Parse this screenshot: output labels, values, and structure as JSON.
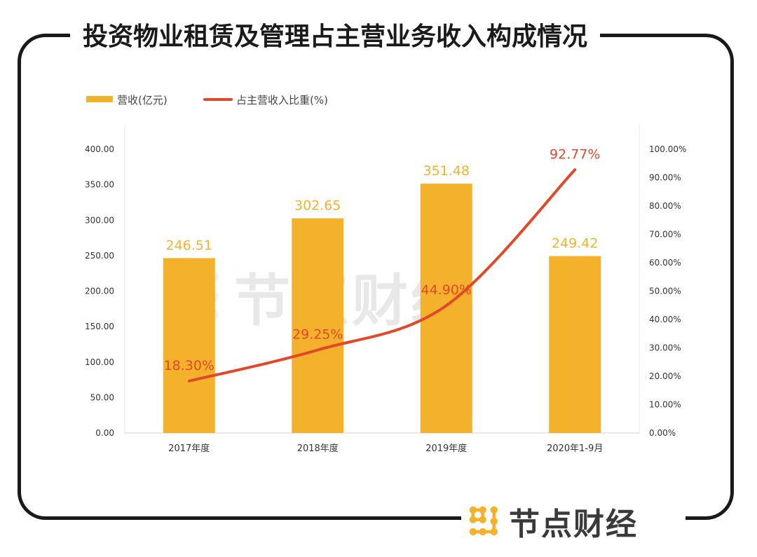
{
  "title": "投资物业租赁及管理占主营业务收入构成情况",
  "logo_text": "节点财经",
  "watermark_text": "节点财经",
  "chart_data": {
    "type": "bar+line",
    "categories": [
      "2017年度",
      "2018年度",
      "2019年度",
      "2020年1-9月"
    ],
    "series": [
      {
        "name": "营收(亿元)",
        "type": "bar",
        "axis": "left",
        "color": "#F4B12B",
        "values": [
          246.51,
          302.65,
          351.48,
          249.42
        ],
        "labels": [
          "246.51",
          "302.65",
          "351.48",
          "249.42"
        ]
      },
      {
        "name": "占主营收入比重(%)",
        "type": "line",
        "axis": "right",
        "color": "#E2492B",
        "values": [
          18.3,
          29.25,
          44.9,
          92.77
        ],
        "labels": [
          "18.30%",
          "29.25%",
          "44.90%",
          "92.77%"
        ]
      }
    ],
    "yleft": {
      "lim": [
        0,
        400
      ],
      "ticks": [
        "0.00",
        "50.00",
        "100.00",
        "150.00",
        "200.00",
        "250.00",
        "300.00",
        "350.00",
        "400.00"
      ]
    },
    "yright": {
      "lim": [
        0,
        100
      ],
      "ticks": [
        "0.00%",
        "10.00%",
        "20.00%",
        "30.00%",
        "40.00%",
        "50.00%",
        "60.00%",
        "70.00%",
        "80.00%",
        "90.00%",
        "100.00%"
      ]
    },
    "legend": "top-left",
    "grid": false
  }
}
